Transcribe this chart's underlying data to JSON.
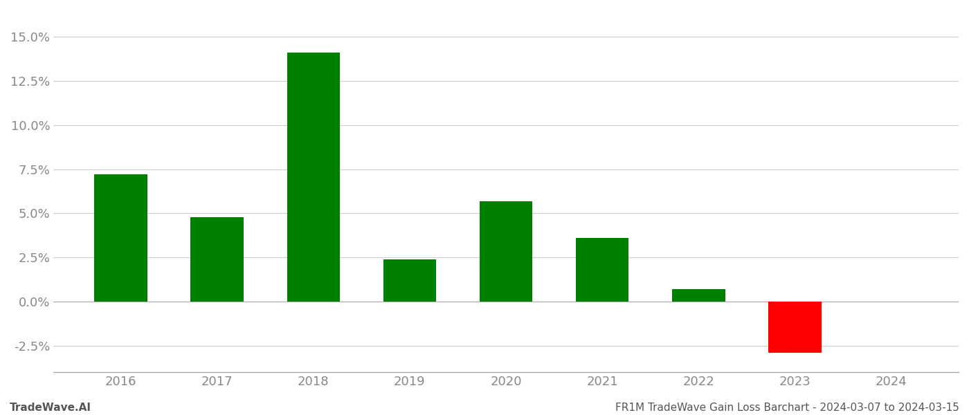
{
  "years": [
    "2016",
    "2017",
    "2018",
    "2019",
    "2020",
    "2021",
    "2022",
    "2023",
    "2024"
  ],
  "values": [
    0.072,
    0.048,
    0.141,
    0.024,
    0.057,
    0.036,
    0.007,
    -0.029,
    null
  ],
  "bar_colors": [
    "#008000",
    "#008000",
    "#008000",
    "#008000",
    "#008000",
    "#008000",
    "#008000",
    "#ff0000",
    null
  ],
  "ylim": [
    -0.04,
    0.165
  ],
  "yticks": [
    -0.025,
    0.0,
    0.025,
    0.05,
    0.075,
    0.1,
    0.125,
    0.15
  ],
  "footer_left": "TradeWave.AI",
  "footer_right": "FR1M TradeWave Gain Loss Barchart - 2024-03-07 to 2024-03-15",
  "background_color": "#ffffff",
  "grid_color": "#cccccc",
  "bar_width": 0.55,
  "axis_label_color": "#888888",
  "footer_font_color": "#555555",
  "footer_font_size": 11,
  "tick_label_fontsize": 13
}
